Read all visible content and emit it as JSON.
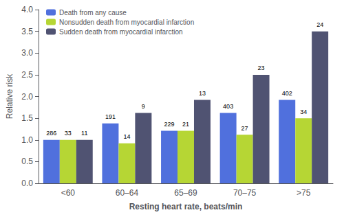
{
  "chart_data": {
    "type": "bar",
    "categories": [
      "<60",
      "60–64",
      "65–69",
      "70–75",
      ">75"
    ],
    "series": [
      {
        "name": "Death from any cause",
        "values": [
          1.0,
          1.38,
          1.21,
          1.62,
          1.92
        ],
        "counts": [
          286,
          191,
          229,
          403,
          402
        ]
      },
      {
        "name": "Nonsudden death from myocardial infarction",
        "values": [
          1.0,
          0.92,
          1.21,
          1.12,
          1.5
        ],
        "counts": [
          33,
          14,
          21,
          27,
          34
        ]
      },
      {
        "name": "Sudden death from myocardial infarction",
        "values": [
          1.0,
          1.62,
          1.92,
          2.5,
          3.5
        ],
        "counts": [
          11,
          9,
          13,
          23,
          24
        ]
      }
    ],
    "ylabel": "Relative risk",
    "xlabel": "Resting heart rate, beats/min",
    "ylim": [
      0.0,
      4.0
    ],
    "yticks": [
      {
        "value": 0,
        "label": "0.0"
      },
      0.5,
      {
        "value": 1,
        "label": "1.0"
      },
      1.5,
      {
        "value": 2,
        "label": "2.0"
      },
      2.5,
      {
        "value": 3,
        "label": "3.0"
      },
      3.5,
      {
        "value": 4,
        "label": "4.0"
      }
    ],
    "legend": "upper left",
    "grid": false
  }
}
